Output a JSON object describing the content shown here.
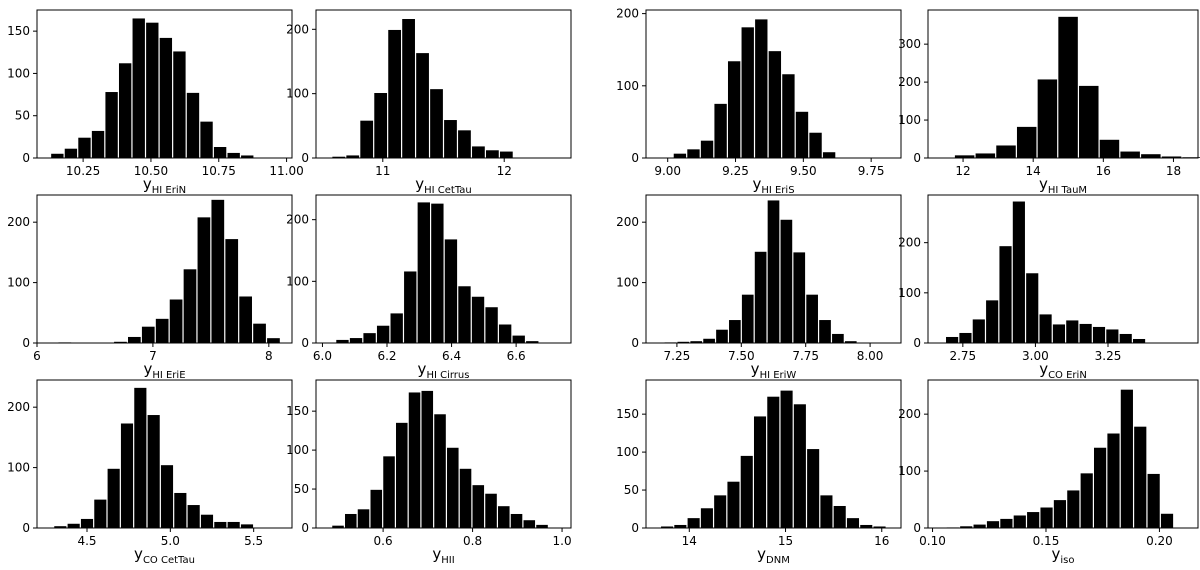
{
  "chart_data": [
    {
      "type": "bar",
      "title": "",
      "xlabel": "y",
      "xlabel_sub": "HI EriN",
      "xlim": [
        10.08,
        11.02
      ],
      "ylim": [
        0,
        175
      ],
      "xticks": [
        10.25,
        10.5,
        10.75,
        11.0
      ],
      "xtick_labels": [
        "10.25",
        "10.50",
        "10.75",
        "11.00"
      ],
      "yticks": [
        0,
        50,
        100,
        150
      ],
      "ytick_labels": [
        "0",
        "50",
        "100",
        "150"
      ],
      "bin_width": 0.05,
      "bins": [
        10.13,
        10.18,
        10.23,
        10.28,
        10.33,
        10.38,
        10.43,
        10.48,
        10.53,
        10.58,
        10.63,
        10.68,
        10.73,
        10.78,
        10.83,
        10.88,
        10.93
      ],
      "values": [
        5,
        11,
        24,
        32,
        78,
        112,
        165,
        160,
        142,
        126,
        77,
        43,
        13,
        6,
        3,
        0,
        0
      ]
    },
    {
      "type": "bar",
      "title": "",
      "xlabel": "y",
      "xlabel_sub": "HI CetTau",
      "xlim": [
        10.45,
        12.55
      ],
      "ylim": [
        0,
        230
      ],
      "xticks": [
        11,
        12
      ],
      "xtick_labels": [
        "11",
        "12"
      ],
      "yticks": [
        0,
        100,
        200
      ],
      "ytick_labels": [
        "0",
        "100",
        "200"
      ],
      "bin_width": 0.115,
      "bins": [
        10.58,
        10.695,
        10.81,
        10.925,
        11.04,
        11.155,
        11.27,
        11.385,
        11.5,
        11.615,
        11.73,
        11.845,
        11.96,
        12.075
      ],
      "values": [
        2,
        4,
        58,
        101,
        199,
        216,
        163,
        107,
        59,
        43,
        18,
        12,
        10,
        0
      ]
    },
    {
      "type": "bar",
      "title": "",
      "xlabel": "y",
      "xlabel_sub": "HI EriS",
      "xlim": [
        8.92,
        9.86
      ],
      "ylim": [
        0,
        205
      ],
      "xticks": [
        9.0,
        9.25,
        9.5,
        9.75
      ],
      "xtick_labels": [
        "9.00",
        "9.25",
        "9.50",
        "9.75"
      ],
      "yticks": [
        0,
        100,
        200
      ],
      "ytick_labels": [
        "0",
        "100",
        "200"
      ],
      "bin_width": 0.05,
      "bins": [
        9.02,
        9.07,
        9.12,
        9.17,
        9.22,
        9.27,
        9.32,
        9.37,
        9.42,
        9.47,
        9.52,
        9.57,
        9.62,
        9.67
      ],
      "values": [
        6,
        12,
        24,
        75,
        134,
        181,
        192,
        148,
        116,
        64,
        35,
        8,
        0,
        0
      ]
    },
    {
      "type": "bar",
      "title": "",
      "xlabel": "y",
      "xlabel_sub": "HI TauM",
      "xlim": [
        11.0,
        18.7
      ],
      "ylim": [
        0,
        390
      ],
      "xticks": [
        12,
        14,
        16,
        18
      ],
      "xtick_labels": [
        "12",
        "14",
        "16",
        "18"
      ],
      "yticks": [
        0,
        100,
        200,
        300
      ],
      "ytick_labels": [
        "0",
        "100",
        "200",
        "300"
      ],
      "bin_width": 0.59,
      "bins": [
        11.75,
        12.34,
        12.93,
        13.52,
        14.11,
        14.7,
        15.29,
        15.88,
        16.47,
        17.06,
        17.65,
        18.24
      ],
      "values": [
        7,
        12,
        33,
        82,
        207,
        372,
        190,
        48,
        17,
        10,
        4,
        2
      ]
    },
    {
      "type": "bar",
      "title": "",
      "xlabel": "y",
      "xlabel_sub": "HI EriE",
      "xlim": [
        6.0,
        8.2
      ],
      "ylim": [
        0,
        245
      ],
      "xticks": [
        6,
        7,
        8
      ],
      "xtick_labels": [
        "6",
        "7",
        "8"
      ],
      "yticks": [
        0,
        100,
        200
      ],
      "ytick_labels": [
        "0",
        "100",
        "200"
      ],
      "bin_width": 0.12,
      "bins": [
        6.18,
        6.3,
        6.42,
        6.54,
        6.66,
        6.78,
        6.9,
        7.02,
        7.14,
        7.26,
        7.38,
        7.5,
        7.62,
        7.74,
        7.86,
        7.98
      ],
      "values": [
        1,
        0,
        0,
        0,
        2,
        10,
        27,
        40,
        72,
        122,
        208,
        237,
        172,
        77,
        32,
        8
      ]
    },
    {
      "type": "bar",
      "title": "",
      "xlabel": "y",
      "xlabel_sub": "HI Cirrus",
      "xlim": [
        5.98,
        6.77
      ],
      "ylim": [
        0,
        240
      ],
      "xticks": [
        6.0,
        6.2,
        6.4,
        6.6
      ],
      "xtick_labels": [
        "6.0",
        "6.2",
        "6.4",
        "6.6"
      ],
      "yticks": [
        0,
        100,
        200
      ],
      "ytick_labels": [
        "0",
        "100",
        "200"
      ],
      "bin_width": 0.042,
      "bins": [
        6.041,
        6.083,
        6.125,
        6.167,
        6.209,
        6.251,
        6.293,
        6.335,
        6.377,
        6.419,
        6.461,
        6.503,
        6.545,
        6.587,
        6.629
      ],
      "values": [
        5,
        8,
        16,
        28,
        48,
        116,
        228,
        226,
        168,
        92,
        75,
        58,
        30,
        12,
        3
      ]
    },
    {
      "type": "bar",
      "title": "",
      "xlabel": "y",
      "xlabel_sub": "HI EriW",
      "xlim": [
        7.13,
        8.12
      ],
      "ylim": [
        0,
        245
      ],
      "xticks": [
        7.25,
        7.5,
        7.75,
        8.0
      ],
      "xtick_labels": [
        "7.25",
        "7.50",
        "7.75",
        "8.00"
      ],
      "yticks": [
        0,
        100,
        200
      ],
      "ytick_labels": [
        "0",
        "100",
        "200"
      ],
      "bin_width": 0.05,
      "bins": [
        7.2,
        7.25,
        7.3,
        7.35,
        7.4,
        7.45,
        7.5,
        7.55,
        7.6,
        7.65,
        7.7,
        7.75,
        7.8,
        7.85,
        7.9,
        7.95,
        8.0
      ],
      "values": [
        1,
        2,
        3,
        7,
        22,
        38,
        80,
        151,
        236,
        204,
        150,
        80,
        38,
        15,
        3,
        0,
        0
      ]
    },
    {
      "type": "bar",
      "title": "",
      "xlabel": "y",
      "xlabel_sub": "CO EriN",
      "xlim": [
        2.63,
        3.56
      ],
      "ylim": [
        0,
        295
      ],
      "xticks": [
        2.75,
        3.0,
        3.25
      ],
      "xtick_labels": [
        "2.75",
        "3.00",
        "3.25"
      ],
      "yticks": [
        0,
        100,
        200
      ],
      "ytick_labels": [
        "0",
        "100",
        "200"
      ],
      "bin_width": 0.046,
      "bins": [
        2.69,
        2.736,
        2.782,
        2.828,
        2.874,
        2.92,
        2.966,
        3.012,
        3.058,
        3.104,
        3.15,
        3.196,
        3.242,
        3.288,
        3.334,
        3.38,
        3.426,
        3.472
      ],
      "values": [
        12,
        20,
        47,
        85,
        193,
        282,
        139,
        57,
        37,
        45,
        38,
        32,
        27,
        18,
        8,
        0,
        0,
        0
      ]
    },
    {
      "type": "bar",
      "title": "",
      "xlabel": "y",
      "xlabel_sub": "CO CetTau",
      "xlim": [
        4.2,
        5.73
      ],
      "ylim": [
        0,
        245
      ],
      "xticks": [
        4.5,
        5.0,
        5.5
      ],
      "xtick_labels": [
        "4.5",
        "5.0",
        "5.5"
      ],
      "yticks": [
        0,
        100,
        200
      ],
      "ytick_labels": [
        "0",
        "100",
        "200"
      ],
      "bin_width": 0.08,
      "bins": [
        4.3,
        4.38,
        4.46,
        4.54,
        4.62,
        4.7,
        4.78,
        4.86,
        4.94,
        5.02,
        5.1,
        5.18,
        5.26,
        5.34,
        5.42,
        5.5,
        5.58
      ],
      "values": [
        3,
        7,
        15,
        47,
        98,
        173,
        232,
        187,
        104,
        58,
        38,
        22,
        10,
        10,
        6,
        0,
        0
      ]
    },
    {
      "type": "bar",
      "title": "",
      "xlabel": "y",
      "xlabel_sub": "HII",
      "xlim": [
        0.45,
        1.02
      ],
      "ylim": [
        0,
        190
      ],
      "xticks": [
        0.6,
        0.8,
        1.0
      ],
      "xtick_labels": [
        "0.6",
        "0.8",
        "1.0"
      ],
      "yticks": [
        0,
        50,
        100,
        150
      ],
      "ytick_labels": [
        "0",
        "50",
        "100",
        "150"
      ],
      "bin_width": 0.0285,
      "bins": [
        0.485,
        0.5135,
        0.542,
        0.5705,
        0.599,
        0.6275,
        0.656,
        0.6845,
        0.713,
        0.7415,
        0.77,
        0.7985,
        0.827,
        0.8555,
        0.884,
        0.9125,
        0.941,
        0.9695
      ],
      "values": [
        3,
        18,
        24,
        49,
        92,
        135,
        174,
        176,
        146,
        103,
        76,
        55,
        44,
        28,
        18,
        10,
        4,
        0
      ]
    },
    {
      "type": "bar",
      "title": "",
      "xlabel": "y",
      "xlabel_sub": "DNM",
      "xlim": [
        13.55,
        16.2
      ],
      "ylim": [
        0,
        195
      ],
      "xticks": [
        14,
        15,
        16
      ],
      "xtick_labels": [
        "14",
        "15",
        "16"
      ],
      "bin_width": 0.138,
      "bins": [
        13.7,
        13.838,
        13.976,
        14.114,
        14.252,
        14.39,
        14.528,
        14.666,
        14.804,
        14.942,
        15.08,
        15.218,
        15.356,
        15.494,
        15.632,
        15.77,
        15.908
      ],
      "yticks": [
        0,
        50,
        100,
        150
      ],
      "ytick_labels": [
        "0",
        "50",
        "100",
        "150"
      ],
      "values": [
        2,
        4,
        13,
        26,
        43,
        61,
        95,
        147,
        173,
        181,
        163,
        104,
        43,
        29,
        13,
        4,
        2
      ]
    },
    {
      "type": "bar",
      "title": "",
      "xlabel": "y",
      "xlabel_sub": "iso",
      "xlim": [
        0.098,
        0.217
      ],
      "ylim": [
        0,
        260
      ],
      "xticks": [
        0.1,
        0.15,
        0.2
      ],
      "xtick_labels": [
        "0.10",
        "0.15",
        "0.20"
      ],
      "yticks": [
        0,
        100,
        200
      ],
      "ytick_labels": [
        "0",
        "100",
        "200"
      ],
      "bin_width": 0.0059,
      "bins": [
        0.106,
        0.1119,
        0.1178,
        0.1237,
        0.1296,
        0.1355,
        0.1414,
        0.1473,
        0.1532,
        0.1591,
        0.165,
        0.1709,
        0.1768,
        0.1827,
        0.1886,
        0.1945,
        0.2004
      ],
      "values": [
        1,
        3,
        6,
        12,
        16,
        22,
        28,
        36,
        49,
        66,
        96,
        141,
        166,
        243,
        178,
        95,
        25
      ]
    }
  ]
}
